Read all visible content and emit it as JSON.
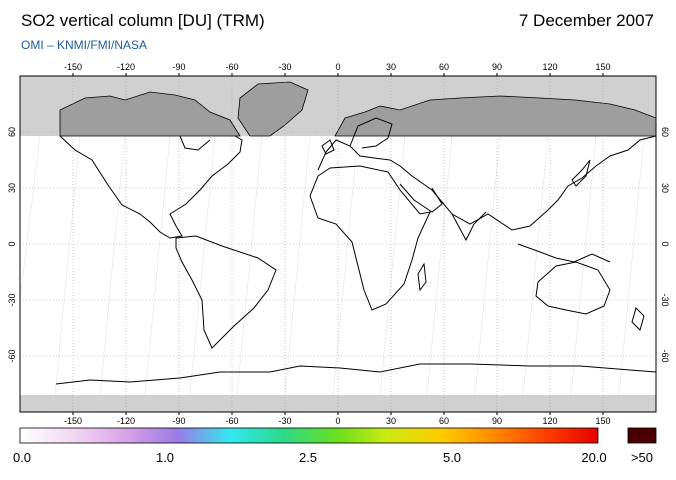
{
  "header": {
    "title": "SO2 vertical column [DU] (TRM)",
    "date": "7 December 2007",
    "source": "OMI  –  KNMI/FMI/NASA"
  },
  "map": {
    "projection": "equirectangular",
    "lon_range": [
      -180,
      180
    ],
    "lat_range": [
      -90,
      90
    ],
    "lon_ticks": [
      "-150",
      "-120",
      "-90",
      "-60",
      "-30",
      "0",
      "30",
      "60",
      "90",
      "120",
      "150"
    ],
    "lat_ticks": [
      "60",
      "30",
      "0",
      "-30",
      "-60"
    ],
    "no_data_north_of_lat": 60,
    "no_data_south_of_lat": -80,
    "colors": {
      "ocean": "#ffffff",
      "no_data": "#d0d0d0",
      "land_no_data": "#9e9e9e",
      "coastline": "#000000",
      "grid": "#a0a0a0"
    }
  },
  "colorbar": {
    "labels": [
      "0.0",
      "1.0",
      "2.5",
      "5.0",
      "20.0"
    ],
    "overflow_label": ">50",
    "stops": [
      "#ffffff",
      "#f2d8f2",
      "#d9a3e8",
      "#9a7be6",
      "#33e8f0",
      "#2cd98a",
      "#66e020",
      "#ccea10",
      "#ffcc00",
      "#ff8a00",
      "#ff4000",
      "#e60000"
    ],
    "overflow_color": "#4a0000"
  }
}
